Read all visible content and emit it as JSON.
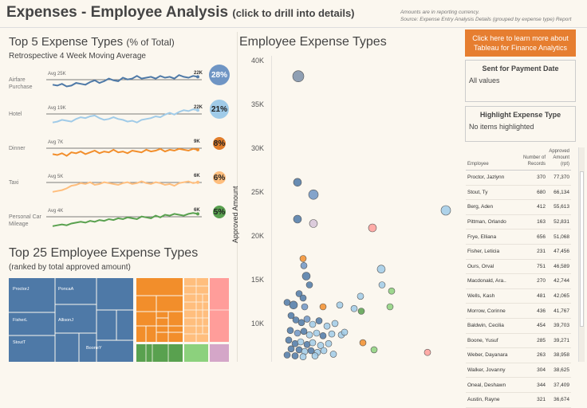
{
  "header": {
    "title": "Expenses - Employee Analysis",
    "subtitle": "(click to drill into details)",
    "note_line1": "Amounts are in reporting currency.",
    "note_line2": "Source: Expense Entry Analysis Details (grouped by expense type) Report"
  },
  "top5": {
    "title": "Top 5 Expense Types",
    "title_suffix": "(% of Total)",
    "subtitle": "Retrospective 4 Week Moving Average",
    "rows": [
      {
        "label": "Airfare Purchase",
        "avg_label": "Avg 25K",
        "last_label": "22K",
        "pct": "28%",
        "color": "#4e79a7",
        "circle": "#6f95c4",
        "trend": [
          0.35,
          0.3,
          0.4,
          0.25,
          0.3,
          0.45,
          0.4,
          0.35,
          0.5,
          0.6,
          0.45,
          0.55,
          0.7,
          0.6,
          0.55,
          0.75,
          0.65,
          0.7,
          0.85,
          0.7,
          0.75,
          0.8,
          0.7,
          0.85,
          0.75,
          0.8,
          0.7,
          0.9,
          0.8,
          0.75,
          0.85,
          0.8
        ]
      },
      {
        "label": "Hotel",
        "avg_label": "Avg 19K",
        "last_label": "22K",
        "pct": "21%",
        "color": "#a0cbe8",
        "circle": "#a0cbe8",
        "trend": [
          0.15,
          0.2,
          0.3,
          0.25,
          0.2,
          0.35,
          0.45,
          0.4,
          0.5,
          0.55,
          0.4,
          0.3,
          0.35,
          0.45,
          0.35,
          0.3,
          0.2,
          0.25,
          0.15,
          0.3,
          0.35,
          0.4,
          0.5,
          0.45,
          0.6,
          0.7,
          0.6,
          0.75,
          0.85,
          0.8,
          0.9,
          0.85
        ]
      },
      {
        "label": "Dinner",
        "avg_label": "Avg 7K",
        "last_label": "9K",
        "pct": "8%",
        "color": "#f28e2b",
        "circle": "#e07d2b",
        "trend": [
          0.3,
          0.25,
          0.35,
          0.2,
          0.4,
          0.35,
          0.45,
          0.3,
          0.4,
          0.5,
          0.35,
          0.45,
          0.4,
          0.55,
          0.4,
          0.45,
          0.35,
          0.5,
          0.45,
          0.4,
          0.55,
          0.45,
          0.5,
          0.6,
          0.45,
          0.55,
          0.5,
          0.6,
          0.55,
          0.5,
          0.6,
          0.55
        ]
      },
      {
        "label": "Taxi",
        "avg_label": "Avg 5K",
        "last_label": "6K",
        "pct": "6%",
        "color": "#ffbe7d",
        "circle": "#ffbe7d",
        "trend": [
          0.1,
          0.15,
          0.2,
          0.3,
          0.45,
          0.5,
          0.6,
          0.55,
          0.65,
          0.5,
          0.55,
          0.65,
          0.6,
          0.55,
          0.5,
          0.6,
          0.65,
          0.55,
          0.6,
          0.7,
          0.6,
          0.55,
          0.65,
          0.6,
          0.5,
          0.55,
          0.45,
          0.6,
          0.65,
          0.7,
          0.6,
          0.65
        ]
      },
      {
        "label": "Personal Car Mileage",
        "avg_label": "Avg 4K",
        "last_label": "6K",
        "pct": "5%",
        "color": "#59a14f",
        "circle": "#59a14f",
        "trend": [
          0.1,
          0.15,
          0.2,
          0.15,
          0.25,
          0.3,
          0.35,
          0.3,
          0.4,
          0.35,
          0.45,
          0.4,
          0.5,
          0.45,
          0.55,
          0.5,
          0.6,
          0.55,
          0.5,
          0.65,
          0.6,
          0.55,
          0.7,
          0.6,
          0.75,
          0.7,
          0.8,
          0.75,
          0.7,
          0.8,
          0.85,
          0.8
        ]
      }
    ]
  },
  "top25": {
    "title": "Top 25 Employee Expense Types",
    "subtitle": "(ranked by total approved amount)",
    "labels": [
      "ProctorJ",
      "PoncaA",
      "FisherL",
      "AllisonJ",
      "StoutT",
      "BooneY"
    ]
  },
  "scatter": {
    "title": "Employee Expense Types",
    "ylabel": "Approved Amount",
    "yticks": [
      "40K",
      "35K",
      "30K",
      "25K",
      "20K",
      "15K",
      "10K"
    ],
    "ylim": [
      0,
      40000
    ]
  },
  "sidebar": {
    "cta": "Click here to learn more about Tableau for Finance Analytics",
    "filter1": {
      "title": "Sent for Payment Date",
      "value": "All values"
    },
    "filter2": {
      "title": "Highlight Expense Type",
      "value": "No items highlighted"
    }
  },
  "employee_table": {
    "col_employee": "Employee",
    "col_records": "Number of Records",
    "col_amount": "Approved Amount (rpt)",
    "rows": [
      {
        "name": "Proctor, Jazlynn",
        "records": "370",
        "amount": "77,370"
      },
      {
        "name": "Stout, Ty",
        "records": "680",
        "amount": "66,134"
      },
      {
        "name": "Berg, Aden",
        "records": "412",
        "amount": "55,613"
      },
      {
        "name": "Pittman, Orlando",
        "records": "163",
        "amount": "52,831"
      },
      {
        "name": "Frye, Elliana",
        "records": "656",
        "amount": "51,068"
      },
      {
        "name": "Fisher, Leticia",
        "records": "231",
        "amount": "47,456"
      },
      {
        "name": "Ours, Orval",
        "records": "751",
        "amount": "46,589"
      },
      {
        "name": "Macdonald, Ara..",
        "records": "270",
        "amount": "42,744"
      },
      {
        "name": "Wells, Kash",
        "records": "481",
        "amount": "42,065"
      },
      {
        "name": "Morrow, Corinne",
        "records": "436",
        "amount": "41,767"
      },
      {
        "name": "Baldwin, Cecilia",
        "records": "454",
        "amount": "39,703"
      },
      {
        "name": "Boone, Yusuf",
        "records": "285",
        "amount": "39,271"
      },
      {
        "name": "Weber, Dayanara",
        "records": "263",
        "amount": "38,958"
      },
      {
        "name": "Walker, Jovanny",
        "records": "304",
        "amount": "38,625"
      },
      {
        "name": "Oneal, Deshawn",
        "records": "344",
        "amount": "37,409"
      },
      {
        "name": "Austin, Rayne",
        "records": "321",
        "amount": "36,674"
      }
    ]
  }
}
